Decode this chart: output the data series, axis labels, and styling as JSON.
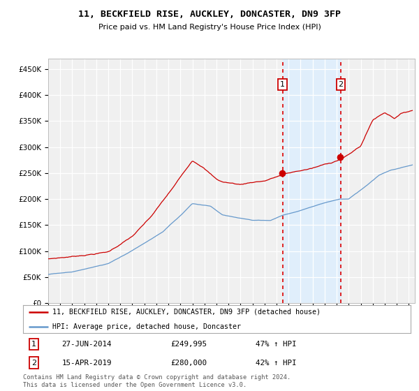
{
  "title": "11, BECKFIELD RISE, AUCKLEY, DONCASTER, DN9 3FP",
  "subtitle": "Price paid vs. HM Land Registry's House Price Index (HPI)",
  "red_label": "11, BECKFIELD RISE, AUCKLEY, DONCASTER, DN9 3FP (detached house)",
  "blue_label": "HPI: Average price, detached house, Doncaster",
  "purchase1_date": "27-JUN-2014",
  "purchase1_price": 249995,
  "purchase1_pct": "47% ↑ HPI",
  "purchase2_date": "15-APR-2019",
  "purchase2_price": 280000,
  "purchase2_pct": "42% ↑ HPI",
  "footer": "Contains HM Land Registry data © Crown copyright and database right 2024.\nThis data is licensed under the Open Government Licence v3.0.",
  "red_color": "#cc0000",
  "blue_color": "#6699cc",
  "shade_color": "#ddeeff",
  "dashed_color": "#dd0000",
  "grid_color": "#cccccc",
  "background_color": "#f0f0f0",
  "ylim": [
    0,
    470000
  ],
  "yticks": [
    0,
    50000,
    100000,
    150000,
    200000,
    250000,
    300000,
    350000,
    400000,
    450000
  ],
  "start_year": 1995,
  "end_year": 2025
}
